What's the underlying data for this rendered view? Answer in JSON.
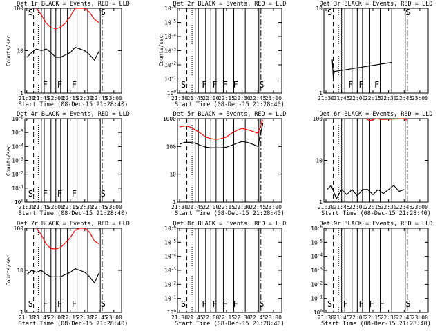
{
  "chart_data": [
    {
      "type": "line",
      "title": "Det 1r BLACK = Events, RED = LLD",
      "xlabel": "Start Time (08-Dec-15 21:28:40)",
      "ylabel": "Counts/sec",
      "yscale": "log",
      "ylim": [
        1,
        100
      ],
      "yticks": [
        "1",
        "10",
        "100"
      ],
      "xticks": [
        "21:30",
        "21:45",
        "22:00",
        "22:15",
        "22:30",
        "22:45",
        "23:00"
      ],
      "markers": [
        {
          "label": "S",
          "t": "21:30"
        },
        {
          "label": "F",
          "t": "21:45"
        },
        {
          "label": "F",
          "t": "22:00"
        },
        {
          "label": "F",
          "t": "22:15"
        },
        {
          "label": "S",
          "t": "22:45"
        }
      ],
      "series": [
        {
          "color": "#ff0000",
          "x": [
            "21:40",
            "21:45",
            "21:50",
            "21:55",
            "22:00",
            "22:05",
            "22:10",
            "22:15",
            "22:20",
            "22:25",
            "22:30",
            "22:35",
            "22:40",
            "22:45"
          ],
          "values": [
            100,
            70,
            45,
            35,
            33,
            36,
            45,
            65,
            100,
            100,
            100,
            80,
            55,
            45
          ]
        },
        {
          "color": "#000000",
          "x": [
            "21:30",
            "21:35",
            "21:40",
            "21:45",
            "21:50",
            "21:55",
            "22:00",
            "22:05",
            "22:10",
            "22:15",
            "22:20",
            "22:25",
            "22:30",
            "22:35",
            "22:40",
            "22:45"
          ],
          "values": [
            7,
            9,
            11,
            10,
            11,
            9,
            7,
            7,
            8,
            9,
            12,
            11,
            10,
            8,
            6,
            10
          ]
        }
      ]
    },
    {
      "type": "line",
      "title": "Det 2r BLACK = Events, RED = LLD",
      "xlabel": "Start Time (08-Dec-15 21:28:40)",
      "ylabel": "Counts/sec",
      "yscale": "log",
      "ylim": [
        1,
        1e-06
      ],
      "yticks": [
        "10^0",
        "10^-1",
        "10^-2",
        "10^-3",
        "10^-4",
        "10^-5",
        "10^-6"
      ],
      "xticks": [
        "21:30",
        "21:45",
        "22:00",
        "22:15",
        "22:30",
        "22:45",
        "23:00"
      ],
      "markers": [
        {
          "label": "S",
          "t": "21:30"
        },
        {
          "label": "F",
          "t": "21:50"
        },
        {
          "label": "F",
          "t": "22:00"
        },
        {
          "label": "F",
          "t": "22:10"
        },
        {
          "label": "F",
          "t": "22:20"
        },
        {
          "label": "S",
          "t": "22:45"
        }
      ],
      "series": []
    },
    {
      "type": "line",
      "title": "Det 3r BLACK = Events, RED = LLD",
      "xlabel": "",
      "ylabel": "",
      "yscale": "log",
      "ylim": [
        1,
        10
      ],
      "yticks": [
        "1",
        "10"
      ],
      "xticks": [
        "21:30",
        "21:45",
        "22:00",
        "22:15",
        "22:30",
        "22:45",
        "23:00"
      ],
      "markers": [
        {
          "label": "S",
          "t": "21:30"
        },
        {
          "label": "F",
          "t": "21:50"
        },
        {
          "label": "F",
          "t": "22:00"
        },
        {
          "label": "F",
          "t": "22:15"
        },
        {
          "label": "S",
          "t": "22:45"
        }
      ],
      "series": [
        {
          "color": "#000000",
          "x": [
            "21:36",
            "21:37",
            "21:38",
            "22:33"
          ],
          "values": [
            2.5,
            1.5,
            1.8,
            2.3
          ]
        }
      ]
    },
    {
      "type": "line",
      "title": "Det 4r BLACK = Events, RED = LLD",
      "xlabel": "Start Time (08-Dec-15 21:28:40)",
      "ylabel": "Counts/sec",
      "yscale": "log",
      "ylim": [
        1,
        1e-06
      ],
      "yticks": [
        "10^0",
        "10^-1",
        "10^-2",
        "10^-3",
        "10^-4",
        "10^-5",
        "10^-6"
      ],
      "xticks": [
        "21:30",
        "21:45",
        "22:00",
        "22:15",
        "22:30",
        "22:45",
        "23:00"
      ],
      "markers": [
        {
          "label": "S",
          "t": "21:30"
        },
        {
          "label": "F",
          "t": "21:45"
        },
        {
          "label": "F",
          "t": "22:00"
        },
        {
          "label": "F",
          "t": "22:15"
        },
        {
          "label": "S",
          "t": "22:45"
        }
      ],
      "series": []
    },
    {
      "type": "line",
      "title": "Det 5r BLACK = Events, RED = LLD",
      "xlabel": "Start Time (08-Dec-15 21:28:40)",
      "ylabel": "",
      "yscale": "log",
      "ylim": [
        1,
        1000
      ],
      "yticks": [
        "1",
        "10",
        "100",
        "1000"
      ],
      "xticks": [
        "21:30",
        "21:45",
        "22:00",
        "22:15",
        "22:30",
        "22:45",
        "23:00"
      ],
      "markers": [],
      "series": [
        {
          "color": "#ff0000",
          "x": [
            "21:30",
            "21:35",
            "21:40",
            "21:45",
            "21:50",
            "21:55",
            "22:00",
            "22:05",
            "22:10",
            "22:15",
            "22:20",
            "22:25",
            "22:30",
            "22:35",
            "22:40",
            "22:45",
            "22:50"
          ],
          "values": [
            500,
            550,
            500,
            400,
            300,
            220,
            190,
            180,
            190,
            220,
            300,
            380,
            450,
            400,
            350,
            300,
            900
          ]
        },
        {
          "color": "#000000",
          "x": [
            "21:30",
            "21:35",
            "21:40",
            "21:45",
            "21:50",
            "21:55",
            "22:00",
            "22:05",
            "22:10",
            "22:15",
            "22:20",
            "22:25",
            "22:30",
            "22:35",
            "22:40",
            "22:45",
            "22:50"
          ],
          "values": [
            120,
            140,
            140,
            130,
            110,
            95,
            90,
            90,
            90,
            95,
            110,
            130,
            150,
            140,
            120,
            100,
            700
          ]
        }
      ]
    },
    {
      "type": "line",
      "title": "Det 6r BLACK = Events, RED = LLD",
      "xlabel": "Start Time (08-Dec-15 21:28:40)",
      "ylabel": "",
      "yscale": "log",
      "ylim": [
        1,
        100
      ],
      "yticks": [
        "1",
        "10",
        "100"
      ],
      "xticks": [
        "21:30",
        "21:45",
        "22:00",
        "22:15",
        "22:30",
        "22:45",
        "23:00"
      ],
      "markers": [],
      "series": [
        {
          "color": "#ff0000",
          "x": [
            "22:08",
            "22:12",
            "22:18",
            "22:24",
            "22:45",
            "22:48"
          ],
          "values": [
            100,
            90,
            100,
            95,
            100,
            92
          ]
        },
        {
          "color": "#000000",
          "x": [
            "21:31",
            "21:35",
            "21:40",
            "21:45",
            "21:50",
            "21:55",
            "22:00",
            "22:05",
            "22:10",
            "22:15",
            "22:20",
            "22:25",
            "22:30",
            "22:35",
            "22:40",
            "22:45"
          ],
          "values": [
            2,
            2.5,
            1.2,
            2,
            1.5,
            2,
            1.4,
            2,
            2,
            1.5,
            2,
            1.6,
            2,
            2.5,
            1.8,
            2
          ]
        }
      ]
    },
    {
      "type": "line",
      "title": "Det 7r BLACK = Events, RED = LLD",
      "xlabel": "Start Time (08-Dec-15 21:28:40)",
      "ylabel": "Counts/sec",
      "yscale": "log",
      "ylim": [
        1,
        100
      ],
      "yticks": [
        "1",
        "10",
        "100"
      ],
      "xticks": [
        "21:30",
        "21:45",
        "22:00",
        "22:15",
        "22:30",
        "22:45",
        "23:00"
      ],
      "markers": [
        {
          "label": "S",
          "t": "21:30"
        },
        {
          "label": "F",
          "t": "21:45"
        },
        {
          "label": "F",
          "t": "22:00"
        },
        {
          "label": "F",
          "t": "22:15"
        },
        {
          "label": "S",
          "t": "22:45"
        }
      ],
      "series": [
        {
          "color": "#ff0000",
          "x": [
            "21:40",
            "21:45",
            "21:50",
            "21:55",
            "22:00",
            "22:05",
            "22:10",
            "22:15",
            "22:20",
            "22:25",
            "22:30",
            "22:35",
            "22:40",
            "22:45"
          ],
          "values": [
            100,
            70,
            42,
            33,
            32,
            35,
            45,
            60,
            90,
            100,
            100,
            80,
            50,
            42
          ]
        },
        {
          "color": "#000000",
          "x": [
            "21:30",
            "21:35",
            "21:40",
            "21:45",
            "21:50",
            "21:55",
            "22:00",
            "22:05",
            "22:10",
            "22:15",
            "22:20",
            "22:25",
            "22:30",
            "22:35",
            "22:40",
            "22:45"
          ],
          "values": [
            8,
            10,
            9,
            10,
            8,
            7,
            7,
            7,
            8,
            9,
            11,
            10,
            9,
            7,
            5,
            9
          ]
        }
      ]
    },
    {
      "type": "line",
      "title": "Det 8r BLACK = Events, RED = LLD",
      "xlabel": "Start Time (08-Dec-15 21:28:40)",
      "ylabel": "",
      "yscale": "log",
      "ylim": [
        1,
        1e-06
      ],
      "yticks": [
        "10^0",
        "10^-1",
        "10^-2",
        "10^-3",
        "10^-4",
        "10^-5",
        "10^-6"
      ],
      "xticks": [
        "21:30",
        "21:45",
        "22:00",
        "22:15",
        "22:30",
        "22:45",
        "23:00"
      ],
      "markers": [
        {
          "label": "S",
          "t": "21:30"
        },
        {
          "label": "F",
          "t": "21:50"
        },
        {
          "label": "F",
          "t": "22:00"
        },
        {
          "label": "F",
          "t": "22:10"
        },
        {
          "label": "F",
          "t": "22:20"
        },
        {
          "label": "S",
          "t": "22:45"
        }
      ],
      "series": []
    },
    {
      "type": "line",
      "title": "Det 9r BLACK = Events, RED = LLD",
      "xlabel": "Start Time (08-Dec-15 21:28:40)",
      "ylabel": "",
      "yscale": "log",
      "ylim": [
        1,
        1e-06
      ],
      "yticks": [
        "10^0",
        "10^-1",
        "10^-2",
        "10^-3",
        "10^-4",
        "10^-5",
        "10^-6"
      ],
      "xticks": [
        "21:30",
        "21:45",
        "22:00",
        "22:15",
        "22:30",
        "22:45",
        "23:00"
      ],
      "markers": [
        {
          "label": "S",
          "t": "21:30"
        },
        {
          "label": "F",
          "t": "21:45"
        },
        {
          "label": "F",
          "t": "22:00"
        },
        {
          "label": "F",
          "t": "22:10"
        },
        {
          "label": "F",
          "t": "22:20"
        },
        {
          "label": "S",
          "t": "22:45"
        }
      ],
      "series": []
    }
  ]
}
